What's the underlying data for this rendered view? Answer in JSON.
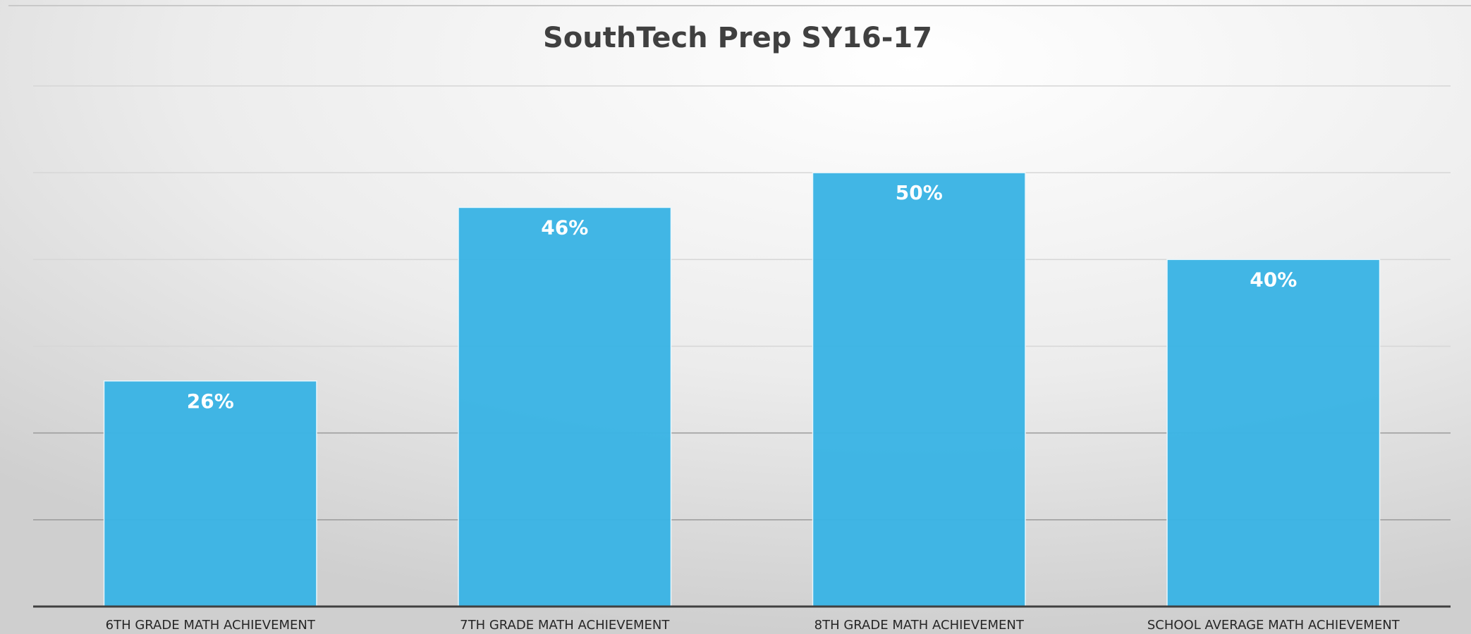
{
  "chart_data": {
    "type": "bar",
    "title": "SouthTech Prep  SY16-17",
    "categories": [
      "6TH GRADE MATH ACHIEVEMENT",
      "7TH GRADE MATH ACHIEVEMENT",
      "8TH GRADE MATH ACHIEVEMENT",
      "SCHOOL AVERAGE MATH ACHIEVEMENT"
    ],
    "values": [
      26,
      46,
      50,
      40
    ],
    "value_labels": [
      "26%",
      "46%",
      "50%",
      "40%"
    ],
    "color": "#3bb4e4",
    "ylim": [
      0,
      60
    ],
    "yticks": [
      0,
      10,
      20,
      30,
      40,
      50,
      60
    ],
    "grid": true
  }
}
